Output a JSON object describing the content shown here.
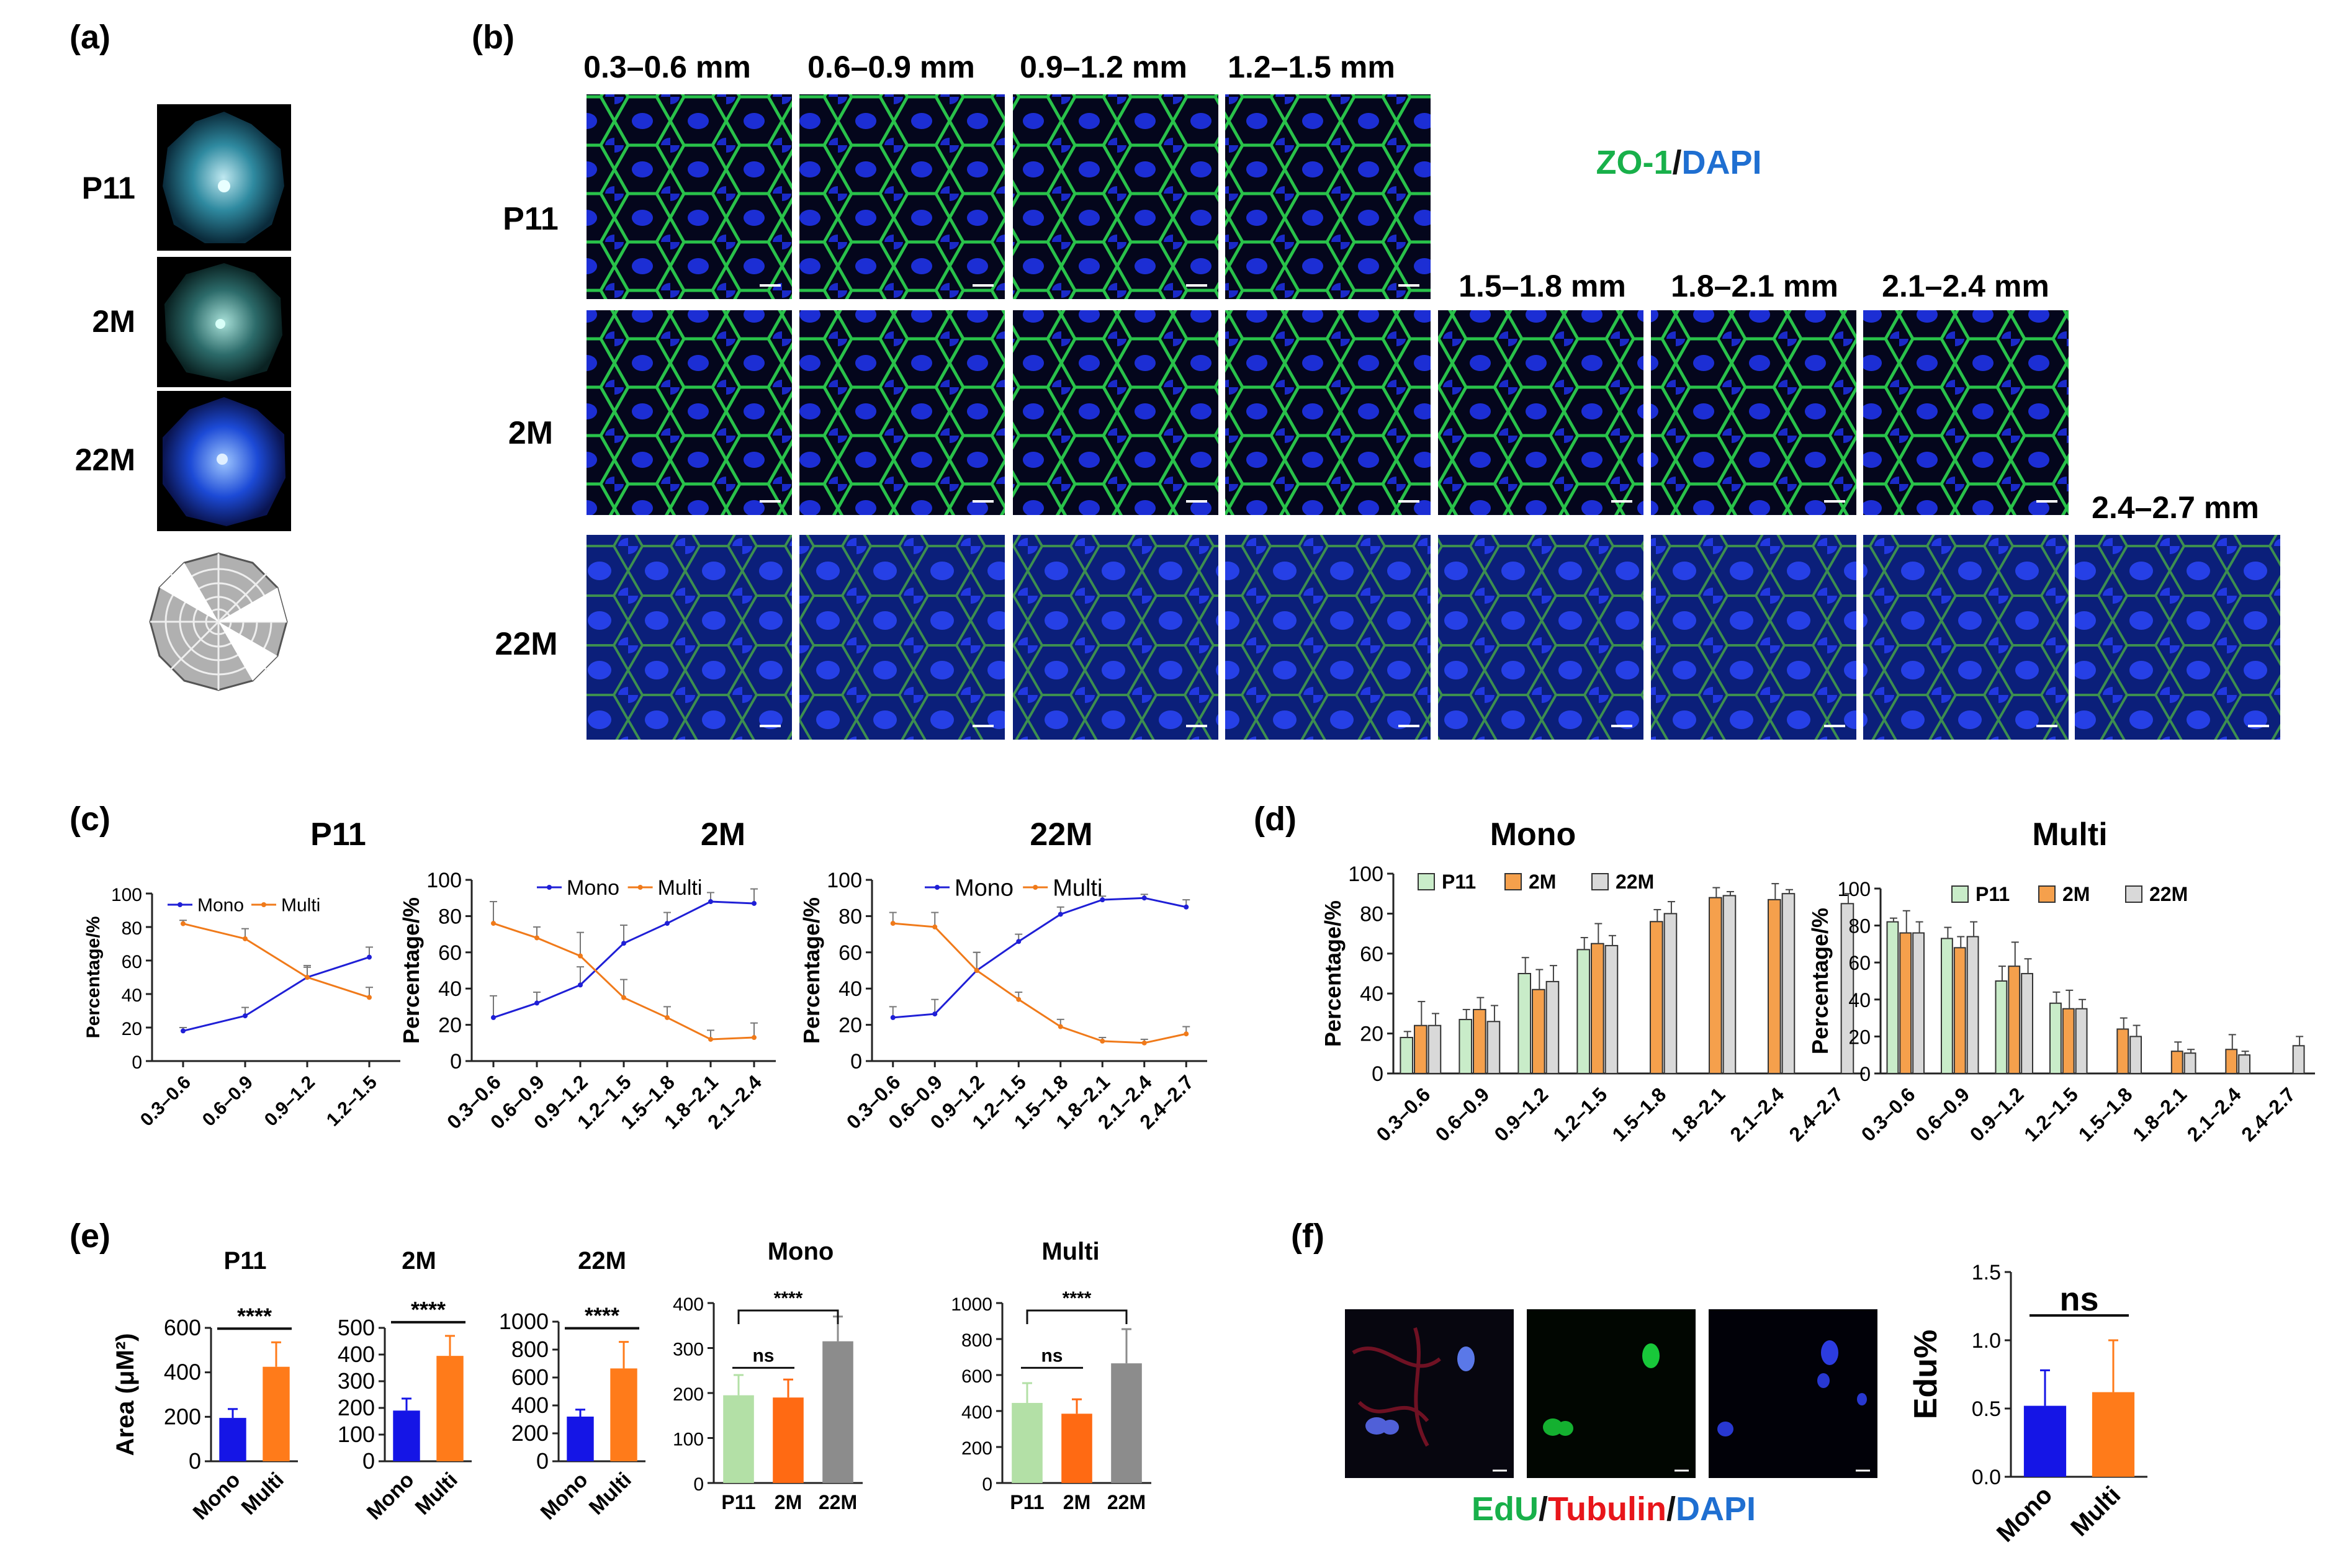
{
  "colors": {
    "mono_line": "#1f1fd6",
    "multi_line": "#f07a1a",
    "p11_bar": "#c9ecc9",
    "m2_bar": "#f5a04c",
    "m22_bar": "#d9d9d9",
    "mono_bar": "#1515e6",
    "multi_bar": "#ff7b1a",
    "light_green_bar": "#b3e0a6",
    "dark_orange_bar": "#ff6a13",
    "gray_bar": "#8c8c8c",
    "zo1_green": "#18b04a",
    "dapi_blue": "#1f6fd1",
    "tubulin_red": "#e8161b"
  },
  "panels": {
    "a": "(a)",
    "b": "(b)",
    "c": "(c)",
    "d": "(d)",
    "e": "(e)",
    "f": "(f)"
  },
  "panel_a": {
    "rows": [
      "P11",
      "2M",
      "22M"
    ],
    "icons": [
      "retina-flatmount-p11",
      "retina-flatmount-2m",
      "retina-flatmount-22m",
      "sampling-zone-diagram"
    ]
  },
  "panel_b": {
    "stain_zo1": "ZO-1",
    "stain_sep": "/",
    "stain_dapi": "DAPI",
    "row_labels": [
      "P11",
      "2M",
      "22M"
    ],
    "col_labels_top": [
      "0.3–0.6 mm",
      "0.6–0.9 mm",
      "0.9–1.2 mm",
      "1.2–1.5 mm"
    ],
    "col_labels_mid": [
      "1.5–1.8 mm",
      "1.8–2.1 mm",
      "2.1–2.4 mm"
    ],
    "col_label_last": "2.4–2.7 mm"
  },
  "chart_data": [
    {
      "type": "line",
      "panel": "c",
      "title": "P11",
      "ylabel": "Percentage/%",
      "ylim": [
        0,
        100
      ],
      "yticks": [
        0,
        20,
        40,
        60,
        80,
        100
      ],
      "categories": [
        "0.3–0.6",
        "0.6–0.9",
        "0.9–1.2",
        "1.2–1.5"
      ],
      "series": [
        {
          "name": "Mono",
          "values": [
            18,
            27,
            50,
            62
          ],
          "errors": [
            2,
            5,
            6,
            6
          ]
        },
        {
          "name": "Multi",
          "values": [
            82,
            73,
            50,
            38
          ],
          "errors": [
            2,
            6,
            7,
            6
          ]
        }
      ]
    },
    {
      "type": "line",
      "panel": "c",
      "title": "2M",
      "ylabel": "Percentage/%",
      "ylim": [
        0,
        100
      ],
      "yticks": [
        0,
        20,
        40,
        60,
        80,
        100
      ],
      "categories": [
        "0.3–0.6",
        "0.6–0.9",
        "0.9–1.2",
        "1.2–1.5",
        "1.5–1.8",
        "1.8–2.1",
        "2.1–2.4"
      ],
      "series": [
        {
          "name": "Mono",
          "values": [
            24,
            32,
            42,
            65,
            76,
            88,
            87
          ],
          "errors": [
            12,
            6,
            10,
            10,
            6,
            5,
            8
          ]
        },
        {
          "name": "Multi",
          "values": [
            76,
            68,
            58,
            35,
            24,
            12,
            13
          ],
          "errors": [
            12,
            6,
            13,
            10,
            6,
            5,
            8
          ]
        }
      ]
    },
    {
      "type": "line",
      "panel": "c",
      "title": "22M",
      "ylabel": "Percentage/%",
      "ylim": [
        0,
        100
      ],
      "yticks": [
        0,
        20,
        40,
        60,
        80,
        100
      ],
      "categories": [
        "0.3–0.6",
        "0.6–0.9",
        "0.9–1.2",
        "1.2–1.5",
        "1.5–1.8",
        "1.8–2.1",
        "2.1–2.4",
        "2.4–2.7"
      ],
      "series": [
        {
          "name": "Mono",
          "values": [
            24,
            26,
            50,
            66,
            81,
            89,
            90,
            85
          ],
          "errors": [
            6,
            8,
            10,
            4,
            4,
            2,
            2,
            4
          ]
        },
        {
          "name": "Multi",
          "values": [
            76,
            74,
            50,
            34,
            19,
            11,
            10,
            15
          ],
          "errors": [
            6,
            8,
            10,
            4,
            4,
            2,
            2,
            4
          ]
        }
      ]
    },
    {
      "type": "bar",
      "panel": "d",
      "title": "Mono",
      "ylabel": "Percentage/%",
      "ylim": [
        0,
        100
      ],
      "yticks": [
        0,
        20,
        40,
        60,
        80,
        100
      ],
      "categories": [
        "0.3–0.6",
        "0.6–0.9",
        "0.9–1.2",
        "1.2–1.5",
        "1.5–1.8",
        "1.8–2.1",
        "2.1–2.4",
        "2.4–2.7"
      ],
      "series": [
        {
          "name": "P11",
          "values": [
            18,
            27,
            50,
            62,
            null,
            null,
            null,
            null
          ],
          "errors": [
            3,
            5,
            8,
            6,
            0,
            0,
            0,
            0
          ]
        },
        {
          "name": "2M",
          "values": [
            24,
            32,
            42,
            65,
            76,
            88,
            87,
            null
          ],
          "errors": [
            12,
            6,
            10,
            10,
            6,
            5,
            8,
            0
          ]
        },
        {
          "name": "22M",
          "values": [
            24,
            26,
            46,
            64,
            80,
            89,
            90,
            85
          ],
          "errors": [
            6,
            8,
            8,
            5,
            6,
            2,
            2,
            5
          ]
        }
      ]
    },
    {
      "type": "bar",
      "panel": "d",
      "title": "Multi",
      "ylabel": "Percentage/%",
      "ylim": [
        0,
        100
      ],
      "yticks": [
        0,
        20,
        40,
        60,
        80,
        100
      ],
      "categories": [
        "0.3–0.6",
        "0.6–0.9",
        "0.9–1.2",
        "1.2–1.5",
        "1.5–1.8",
        "1.8–2.1",
        "2.1–2.4",
        "2.4–2.7"
      ],
      "series": [
        {
          "name": "P11",
          "values": [
            82,
            73,
            50,
            38,
            null,
            null,
            null,
            null
          ],
          "errors": [
            2,
            6,
            8,
            6,
            0,
            0,
            0,
            0
          ]
        },
        {
          "name": "2M",
          "values": [
            76,
            68,
            58,
            35,
            24,
            12,
            13,
            null
          ],
          "errors": [
            12,
            6,
            13,
            10,
            6,
            5,
            8,
            0
          ]
        },
        {
          "name": "22M",
          "values": [
            76,
            74,
            54,
            35,
            20,
            11,
            10,
            15
          ],
          "errors": [
            6,
            8,
            8,
            5,
            6,
            2,
            2,
            5
          ]
        }
      ]
    },
    {
      "type": "bar",
      "panel": "e",
      "title": "P11",
      "ylabel": "Area (μM²)",
      "ylim": [
        0,
        600
      ],
      "yticks": [
        0,
        200,
        400,
        600
      ],
      "categories": [
        "Mono",
        "Multi"
      ],
      "values": [
        195,
        425
      ],
      "errors": [
        40,
        110
      ],
      "significance": "****"
    },
    {
      "type": "bar",
      "panel": "e",
      "title": "2M",
      "ylabel": "",
      "ylim": [
        0,
        500
      ],
      "yticks": [
        0,
        100,
        200,
        300,
        400,
        500
      ],
      "categories": [
        "Mono",
        "Multi"
      ],
      "values": [
        190,
        395
      ],
      "errors": [
        45,
        75
      ],
      "significance": "****"
    },
    {
      "type": "bar",
      "panel": "e",
      "title": "22M",
      "ylabel": "",
      "ylim": [
        0,
        1000
      ],
      "yticks": [
        0,
        200,
        400,
        600,
        800,
        1000
      ],
      "categories": [
        "Mono",
        "Multi"
      ],
      "values": [
        320,
        665
      ],
      "errors": [
        50,
        190
      ],
      "significance": "****"
    },
    {
      "type": "bar",
      "panel": "e",
      "title": "Mono",
      "ylabel": "",
      "ylim": [
        0,
        400
      ],
      "yticks": [
        0,
        100,
        200,
        300,
        400
      ],
      "categories": [
        "P11",
        "2M",
        "22M"
      ],
      "values": [
        195,
        190,
        315
      ],
      "errors": [
        45,
        40,
        55
      ],
      "significance_pairs": [
        {
          "label": "ns",
          "from": 0,
          "to": 1
        },
        {
          "label": "****",
          "from": 0,
          "to": 2
        }
      ]
    },
    {
      "type": "bar",
      "panel": "e",
      "title": "Multi",
      "ylabel": "",
      "ylim": [
        0,
        1000
      ],
      "yticks": [
        0,
        200,
        400,
        600,
        800,
        1000
      ],
      "categories": [
        "P11",
        "2M",
        "22M"
      ],
      "values": [
        445,
        385,
        665
      ],
      "errors": [
        110,
        80,
        190
      ],
      "significance_pairs": [
        {
          "label": "ns",
          "from": 0,
          "to": 1
        },
        {
          "label": "****",
          "from": 0,
          "to": 2
        }
      ]
    },
    {
      "type": "bar",
      "panel": "f",
      "title": "",
      "ylabel": "Edu%",
      "ylim": [
        0,
        1.5
      ],
      "yticks": [
        "0.0",
        "0.5",
        "1.0",
        "1.5"
      ],
      "categories": [
        "Mono",
        "Multi"
      ],
      "values": [
        0.52,
        0.62
      ],
      "errors": [
        0.26,
        0.38
      ],
      "significance": "ns"
    }
  ],
  "panel_f": {
    "stain_edu": "EdU",
    "sep1": "/",
    "stain_tubulin": "Tubulin",
    "sep2": "/",
    "stain_dapi": "DAPI"
  }
}
